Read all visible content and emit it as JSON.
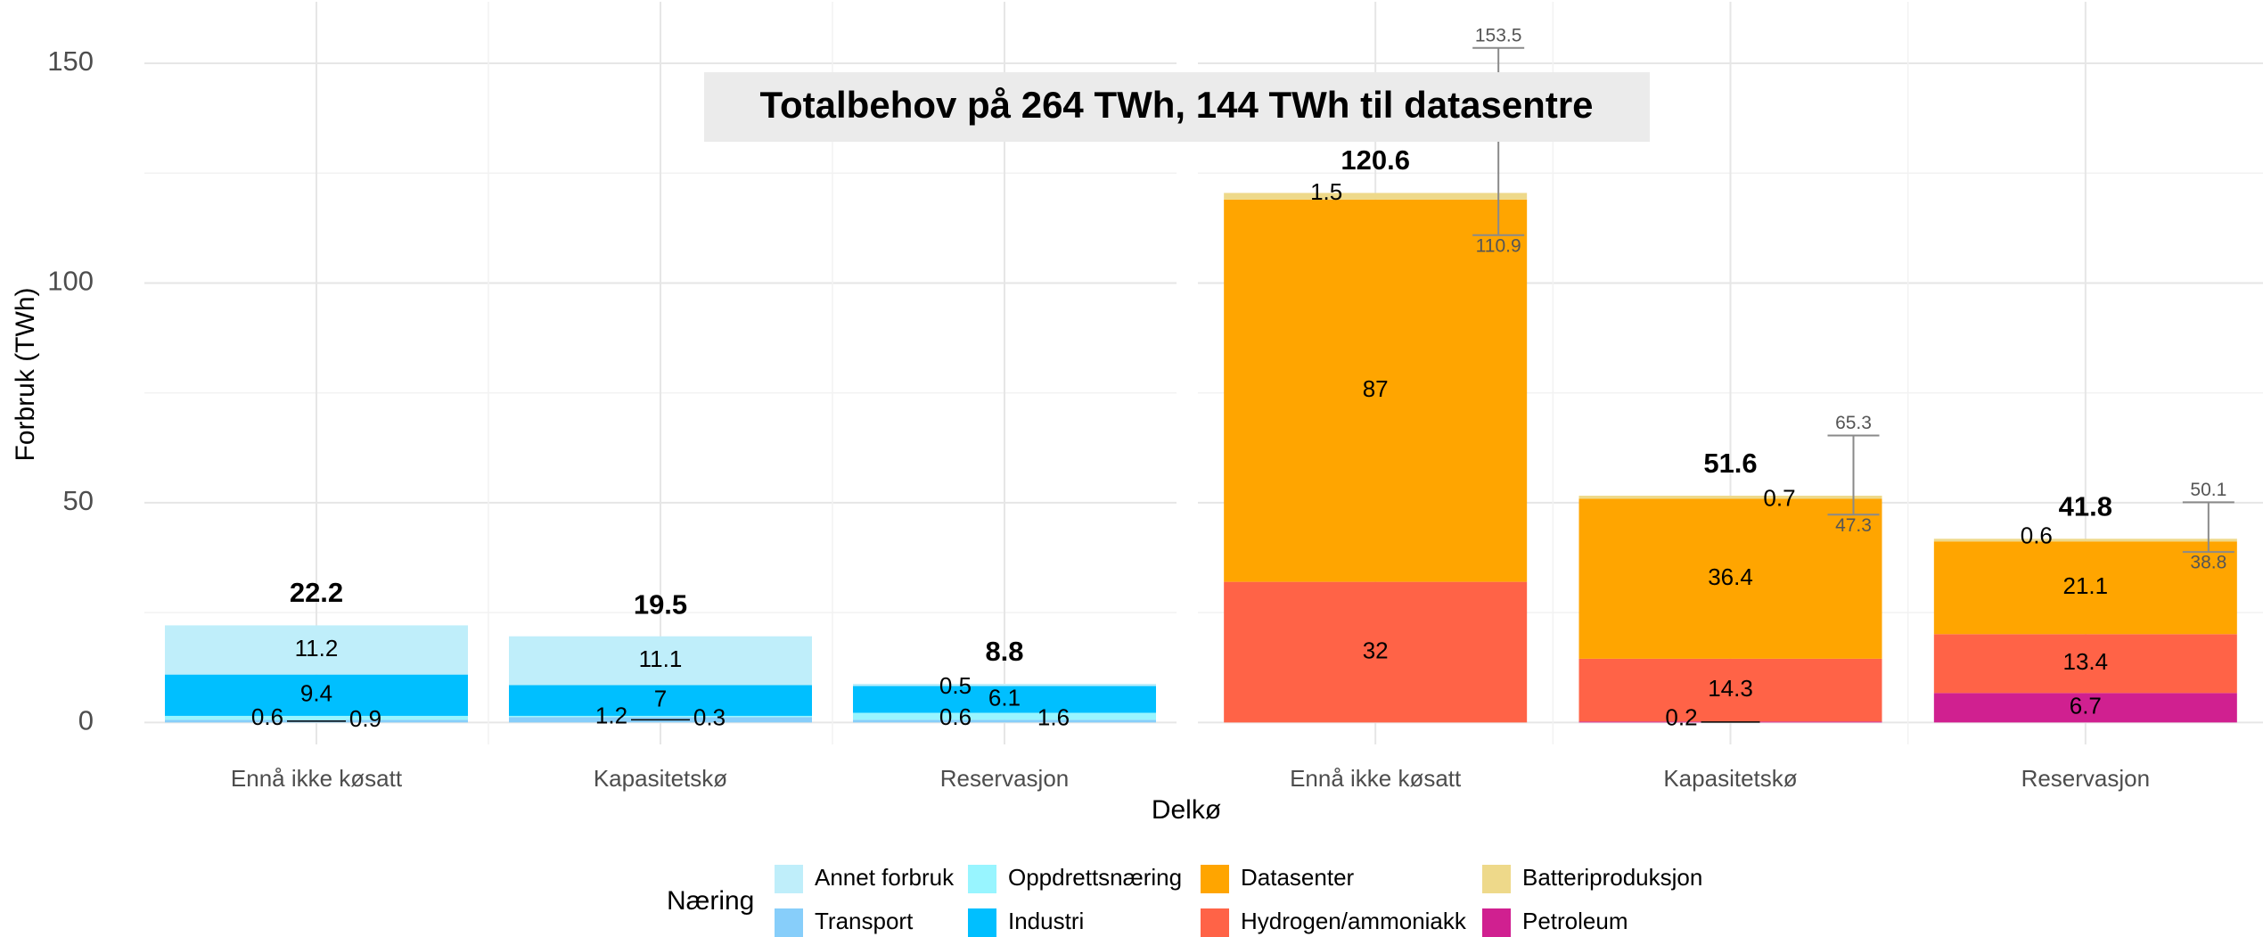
{
  "chart_data": {
    "type": "bar",
    "stacked": true,
    "grid": true,
    "annotation": "Totalbehov på 264 TWh, 144 TWh til datasentre",
    "ylabel": "Forbruk (TWh)",
    "xlabel": "Delkø",
    "legend_title": "Næring",
    "legend_position": "bottom",
    "ylim": [
      -5,
      164
    ],
    "yticks": [
      0,
      50,
      100,
      150
    ],
    "series": [
      {
        "name": "Petroleum",
        "color": "#d02090",
        "values": [
          [
            null,
            null,
            null
          ],
          [
            null,
            0.2,
            6.7
          ]
        ]
      },
      {
        "name": "Transport",
        "color": "#87cefa",
        "values": [
          [
            0.6,
            1.2,
            0.6
          ],
          [
            null,
            null,
            null
          ]
        ]
      },
      {
        "name": "Oppdrettsnæring",
        "color": "#98f5ff",
        "values": [
          [
            0.9,
            0.3,
            1.6
          ],
          [
            null,
            null,
            null
          ]
        ]
      },
      {
        "name": "Industri",
        "color": "#00bfff",
        "values": [
          [
            9.4,
            7,
            6.1
          ],
          [
            null,
            null,
            null
          ]
        ]
      },
      {
        "name": "Hydrogen/ammoniakk",
        "color": "#ff6347",
        "values": [
          [
            null,
            null,
            null
          ],
          [
            32,
            14.3,
            13.4
          ]
        ]
      },
      {
        "name": "Datasenter",
        "color": "#ffa500",
        "values": [
          [
            null,
            null,
            null
          ],
          [
            87,
            36.4,
            21.1
          ]
        ]
      },
      {
        "name": "Batteriproduksjon",
        "color": "#eed98a",
        "values": [
          [
            null,
            null,
            null
          ],
          [
            1.5,
            0.7,
            0.6
          ]
        ]
      },
      {
        "name": "Annet forbruk",
        "color": "#bfeefa",
        "values": [
          [
            11.2,
            11.1,
            0.5
          ],
          [
            null,
            null,
            null
          ]
        ]
      }
    ],
    "panels": [
      {
        "categories": [
          "Ennå ikke køsatt",
          "Kapasitetskø",
          "Reservasjon"
        ],
        "totals": [
          22.2,
          19.5,
          8.8
        ]
      },
      {
        "categories": [
          "Ennå ikke køsatt",
          "Kapasitetskø",
          "Reservasjon"
        ],
        "totals": [
          120.6,
          51.6,
          41.8
        ],
        "error_low": [
          110.9,
          47.3,
          38.8
        ],
        "error_high": [
          153.5,
          65.3,
          50.1
        ]
      }
    ]
  }
}
